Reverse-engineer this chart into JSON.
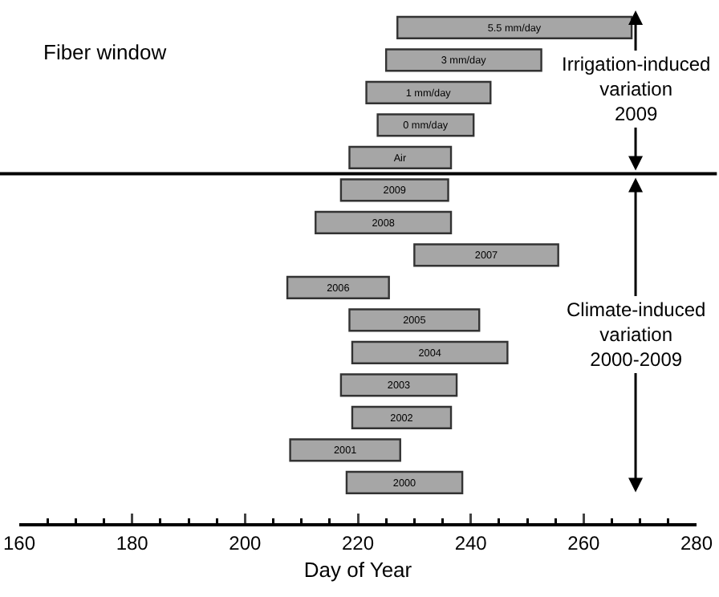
{
  "chart_data": {
    "type": "bar",
    "orientation": "horizontal",
    "xlabel": "Day of Year",
    "categories": [
      "5.5 mm/day",
      "3 mm/day",
      "1 mm/day",
      "0 mm/day",
      "Air",
      "2009",
      "2008",
      "2007",
      "2006",
      "2005",
      "2004",
      "2003",
      "2002",
      "2001",
      "2000"
    ],
    "base": [
      227,
      225,
      221.5,
      223.5,
      218.5,
      217,
      212.5,
      230,
      207.5,
      218.5,
      219,
      217,
      219,
      208,
      218
    ],
    "values": [
      41.5,
      27.5,
      22,
      17,
      18,
      19,
      24,
      25.5,
      18,
      23,
      27.5,
      20.5,
      17.5,
      19.5,
      20.5
    ],
    "color": "#a6a6a6",
    "xlim": [
      160,
      280
    ],
    "xticks": [
      160,
      180,
      200,
      220,
      240,
      260,
      280
    ],
    "tick_labels": "x",
    "grid": false,
    "annotations": [
      "Fiber window",
      "Irrigation-induced\nvariation\n2009",
      "Climate-induced\nvariation\n2000-2009"
    ]
  }
}
